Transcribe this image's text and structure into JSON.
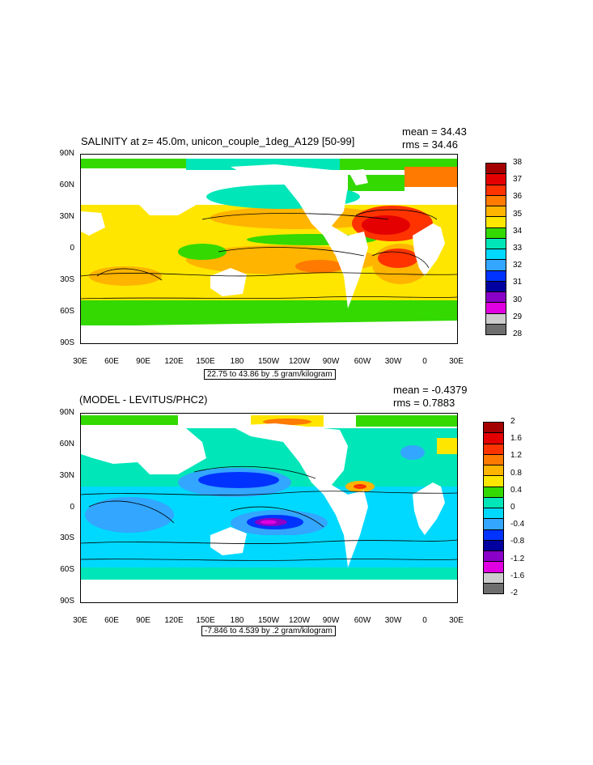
{
  "panels": [
    {
      "title": "SALINITY at z=  45.0m, unicon_couple_1deg_A129 [50-99]",
      "mean": "mean = 34.43",
      "rms": "rms = 34.46",
      "contour_info": "22.75 to 43.86 by .5 gram/kilogram",
      "colorbar": {
        "labels": [
          "38",
          "37",
          "36",
          "35",
          "34",
          "33",
          "32",
          "31",
          "30",
          "29",
          "28"
        ],
        "colors": [
          "#a50000",
          "#e40000",
          "#ff3300",
          "#ff7a00",
          "#ffb400",
          "#ffe600",
          "#33d900",
          "#00e6b8",
          "#00d9ff",
          "#33a6ff",
          "#0033ff",
          "#0000a0",
          "#8a00c8",
          "#e100e1",
          "#cccccc",
          "#6e6e6e"
        ]
      }
    },
    {
      "title": "(MODEL - LEVITUS/PHC2)",
      "mean": "mean = -0.4379",
      "rms": "rms = 0.7883",
      "contour_info": "-7.846 to 4.539 by .2 gram/kilogram",
      "colorbar": {
        "labels": [
          "2",
          "1.6",
          "1.2",
          "0.8",
          "0.4",
          "0",
          "-0.4",
          "-0.8",
          "-1.2",
          "-1.6",
          "-2"
        ],
        "colors": [
          "#a50000",
          "#e40000",
          "#ff3300",
          "#ff7a00",
          "#ffb400",
          "#ffe600",
          "#33d900",
          "#00e6b8",
          "#00d9ff",
          "#33a6ff",
          "#0033ff",
          "#0000a0",
          "#8a00c8",
          "#e100e1",
          "#cccccc",
          "#6e6e6e"
        ]
      }
    }
  ],
  "y_ticks": [
    "90N",
    "60N",
    "30N",
    "0",
    "30S",
    "60S",
    "90S"
  ],
  "x_ticks": [
    "30E",
    "60E",
    "90E",
    "120E",
    "150E",
    "180",
    "150W",
    "120W",
    "90W",
    "60W",
    "30W",
    "0",
    "30E"
  ]
}
